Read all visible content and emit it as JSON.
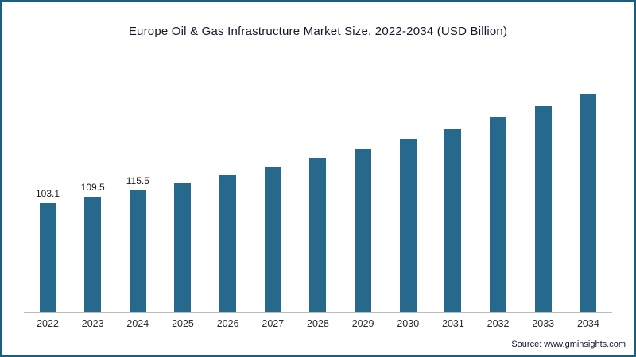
{
  "source": "Source: www.gminsights.com",
  "colors": {
    "bar": "#26698c",
    "frame_border": "#17607f",
    "axis": "#bcbcbc"
  },
  "chart_data": {
    "type": "bar",
    "title": "Europe Oil & Gas Infrastructure Market Size, 2022-2034 (USD Billion)",
    "categories": [
      "2022",
      "2023",
      "2024",
      "2025",
      "2026",
      "2027",
      "2028",
      "2029",
      "2030",
      "2031",
      "2032",
      "2033",
      "2034"
    ],
    "values": [
      103.1,
      109.5,
      115.5,
      122.4,
      129.8,
      137.6,
      145.9,
      154.6,
      163.9,
      173.7,
      184.2,
      195.2,
      206.9
    ],
    "bar_labels": [
      "103.1",
      "109.5",
      "115.5",
      "",
      "",
      "",
      "",
      "",
      "",
      "",
      "",
      "",
      ""
    ],
    "xlabel": "",
    "ylabel": "",
    "ylim": [
      0,
      235
    ],
    "grid": false,
    "legend": false,
    "bar_color": "#26698c"
  }
}
